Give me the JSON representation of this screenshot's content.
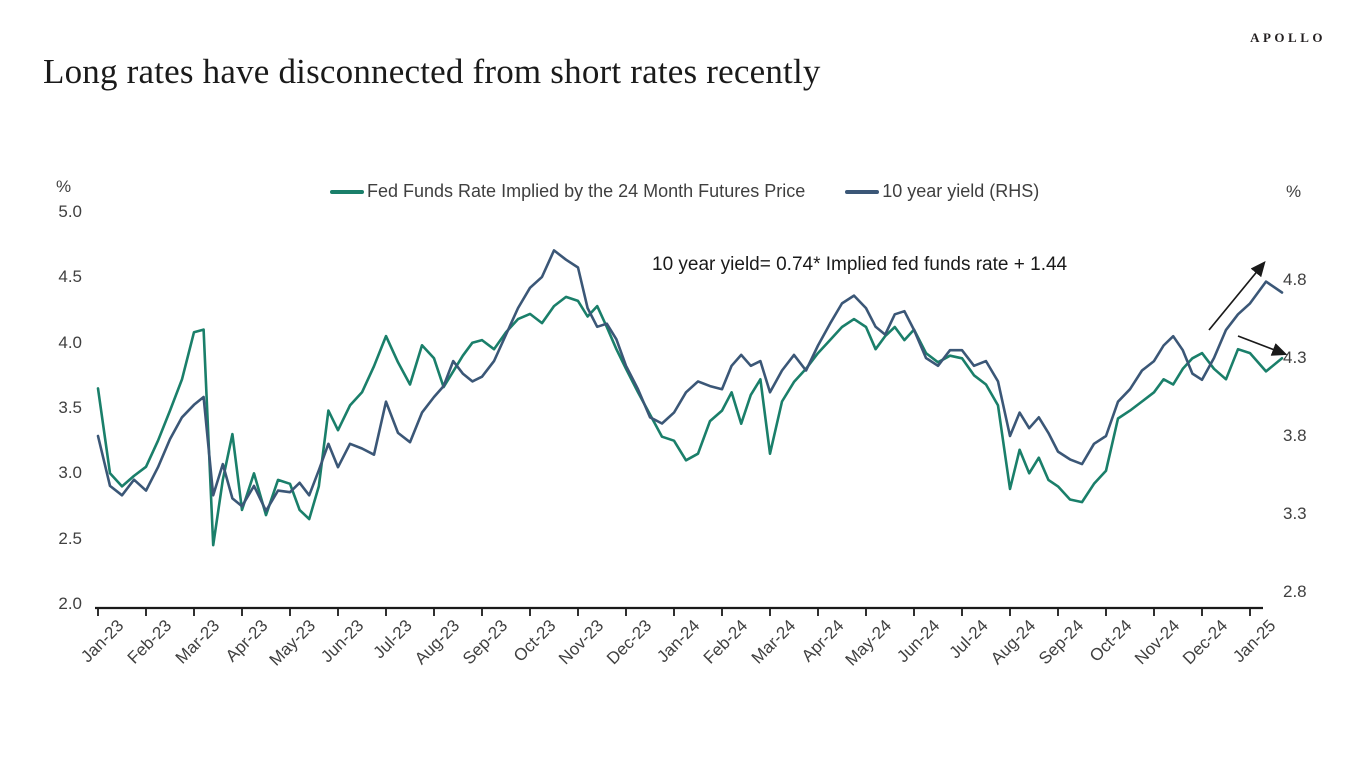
{
  "header": {
    "title": "Long rates have disconnected from short rates recently",
    "brand": "APOLLO"
  },
  "chart_data": {
    "type": "line",
    "title": "Long rates have disconnected from short rates recently",
    "annotation": "10 year yield= 0.74* Implied fed funds rate + 1.44",
    "grid": false,
    "legend_position": "top-center",
    "left_axis": {
      "unit": "%",
      "min": 2.0,
      "max": 5.0,
      "tick_step": 0.5,
      "ticks": [
        5.0,
        4.5,
        4.0,
        3.5,
        3.0,
        2.5,
        2.0
      ],
      "tick_labels": [
        "5.0",
        "4.5",
        "4.0",
        "3.5",
        "3.0",
        "2.5",
        "2.0"
      ]
    },
    "right_axis": {
      "unit": "%",
      "ticks": [
        4.8,
        4.3,
        3.8,
        3.3,
        2.8
      ],
      "tick_labels": [
        "4.8",
        "4.3",
        "3.8",
        "3.3",
        "2.8"
      ]
    },
    "x_axis": {
      "tick_labels": [
        "Jan-23",
        "Feb-23",
        "Mar-23",
        "Apr-23",
        "May-23",
        "Jun-23",
        "Jul-23",
        "Aug-23",
        "Sep-23",
        "Oct-23",
        "Nov-23",
        "Dec-23",
        "Jan-24",
        "Feb-24",
        "Mar-24",
        "Apr-24",
        "May-24",
        "Jun-24",
        "Jul-24",
        "Aug-24",
        "Sep-24",
        "Oct-24",
        "Nov-24",
        "Dec-24",
        "Jan-25"
      ]
    },
    "series": [
      {
        "name": "Fed Funds Rate Implied by the 24 Month Futures Price",
        "axis": "left",
        "color": "#1a7f6a",
        "key": "fed_funds"
      },
      {
        "name": "10 year yield (RHS)",
        "axis": "right",
        "color": "#3b5777",
        "key": "ten_year"
      }
    ],
    "months": [
      {
        "label": "Jan-23",
        "fed_funds": [
          3.65,
          3.0,
          2.9,
          2.98
        ],
        "ten_year": [
          3.8,
          3.48,
          3.42,
          3.52
        ]
      },
      {
        "label": "Feb-23",
        "fed_funds": [
          3.05,
          3.25,
          3.48,
          3.72
        ],
        "ten_year": [
          3.45,
          3.6,
          3.78,
          3.92
        ]
      },
      {
        "label": "Mar-23",
        "fed_funds": [
          4.08,
          4.1,
          2.45,
          2.95,
          3.3
        ],
        "ten_year": [
          4.0,
          4.05,
          3.42,
          3.62,
          3.4
        ]
      },
      {
        "label": "Apr-23",
        "fed_funds": [
          2.72,
          3.0,
          2.68,
          2.95
        ],
        "ten_year": [
          3.35,
          3.48,
          3.32,
          3.45
        ]
      },
      {
        "label": "May-23",
        "fed_funds": [
          2.92,
          2.72,
          2.65,
          2.9,
          3.48
        ],
        "ten_year": [
          3.44,
          3.5,
          3.42,
          3.58,
          3.75
        ]
      },
      {
        "label": "Jun-23",
        "fed_funds": [
          3.33,
          3.52,
          3.62,
          3.82
        ],
        "ten_year": [
          3.6,
          3.75,
          3.72,
          3.68
        ]
      },
      {
        "label": "Jul-23",
        "fed_funds": [
          4.05,
          3.85,
          3.68,
          3.98
        ],
        "ten_year": [
          4.02,
          3.82,
          3.76,
          3.95
        ]
      },
      {
        "label": "Aug-23",
        "fed_funds": [
          3.88,
          3.66,
          3.78,
          3.9,
          4.0
        ],
        "ten_year": [
          4.05,
          4.12,
          4.28,
          4.2,
          4.15
        ]
      },
      {
        "label": "Sep-23",
        "fed_funds": [
          4.02,
          3.95,
          4.08,
          4.18
        ],
        "ten_year": [
          4.18,
          4.28,
          4.45,
          4.62
        ]
      },
      {
        "label": "Oct-23",
        "fed_funds": [
          4.22,
          4.15,
          4.28,
          4.35
        ],
        "ten_year": [
          4.75,
          4.82,
          4.99,
          4.93
        ]
      },
      {
        "label": "Nov-23",
        "fed_funds": [
          4.32,
          4.2,
          4.28,
          4.12,
          3.95
        ],
        "ten_year": [
          4.88,
          4.62,
          4.5,
          4.52,
          4.42
        ]
      },
      {
        "label": "Dec-23",
        "fed_funds": [
          3.8,
          3.62,
          3.45,
          3.28
        ],
        "ten_year": [
          4.25,
          4.1,
          3.92,
          3.88
        ]
      },
      {
        "label": "Jan-24",
        "fed_funds": [
          3.25,
          3.1,
          3.15,
          3.4
        ],
        "ten_year": [
          3.95,
          4.08,
          4.15,
          4.12
        ]
      },
      {
        "label": "Feb-24",
        "fed_funds": [
          3.48,
          3.62,
          3.38,
          3.6,
          3.72
        ],
        "ten_year": [
          4.1,
          4.25,
          4.32,
          4.25,
          4.28
        ]
      },
      {
        "label": "Mar-24",
        "fed_funds": [
          3.15,
          3.55,
          3.7,
          3.8
        ],
        "ten_year": [
          4.08,
          4.22,
          4.32,
          4.22
        ]
      },
      {
        "label": "Apr-24",
        "fed_funds": [
          3.92,
          4.02,
          4.12,
          4.18
        ],
        "ten_year": [
          4.38,
          4.52,
          4.65,
          4.7
        ]
      },
      {
        "label": "May-24",
        "fed_funds": [
          4.12,
          3.95,
          4.05,
          4.12,
          4.02
        ],
        "ten_year": [
          4.62,
          4.5,
          4.45,
          4.58,
          4.6
        ]
      },
      {
        "label": "Jun-24",
        "fed_funds": [
          4.1,
          3.92,
          3.85,
          3.9
        ],
        "ten_year": [
          4.48,
          4.3,
          4.25,
          4.35
        ]
      },
      {
        "label": "Jul-24",
        "fed_funds": [
          3.88,
          3.75,
          3.68,
          3.52
        ],
        "ten_year": [
          4.35,
          4.25,
          4.28,
          4.15
        ]
      },
      {
        "label": "Aug-24",
        "fed_funds": [
          2.88,
          3.18,
          3.0,
          3.12,
          2.95
        ],
        "ten_year": [
          3.8,
          3.95,
          3.85,
          3.92,
          3.82
        ]
      },
      {
        "label": "Sep-24",
        "fed_funds": [
          2.9,
          2.8,
          2.78,
          2.92
        ],
        "ten_year": [
          3.7,
          3.65,
          3.62,
          3.75
        ]
      },
      {
        "label": "Oct-24",
        "fed_funds": [
          3.02,
          3.42,
          3.48,
          3.55
        ],
        "ten_year": [
          3.8,
          4.02,
          4.1,
          4.22
        ]
      },
      {
        "label": "Nov-24",
        "fed_funds": [
          3.62,
          3.72,
          3.68,
          3.8,
          3.88
        ],
        "ten_year": [
          4.28,
          4.38,
          4.44,
          4.35,
          4.2
        ]
      },
      {
        "label": "Dec-24",
        "fed_funds": [
          3.92,
          3.8,
          3.72,
          3.95
        ],
        "ten_year": [
          4.16,
          4.3,
          4.48,
          4.58
        ]
      },
      {
        "label": "Jan-25",
        "fed_funds": [
          3.92,
          3.78,
          3.88
        ],
        "ten_year": [
          4.65,
          4.79,
          4.72
        ]
      }
    ]
  }
}
